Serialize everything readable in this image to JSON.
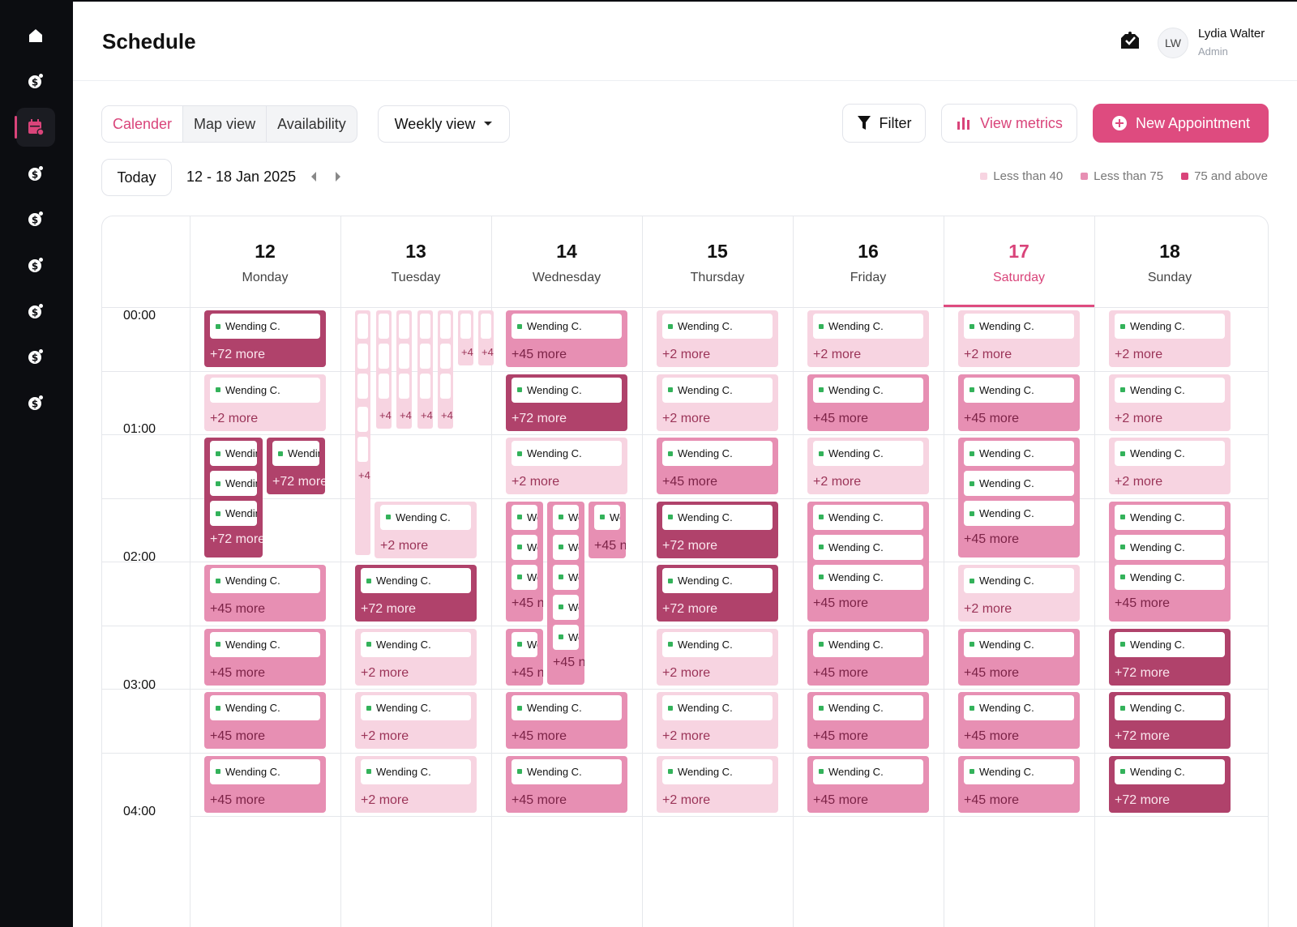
{
  "header": {
    "title": "Schedule",
    "user_initials": "LW",
    "user_name": "Lydia Walter",
    "user_role": "Admin"
  },
  "sidebar": {
    "items": [
      {
        "icon": "home-icon"
      },
      {
        "icon": "dollar-icon"
      },
      {
        "icon": "calendar-icon",
        "active": true
      },
      {
        "icon": "dollar-icon"
      },
      {
        "icon": "dollar-icon"
      },
      {
        "icon": "dollar-icon"
      },
      {
        "icon": "dollar-icon"
      },
      {
        "icon": "dollar-icon"
      },
      {
        "icon": "dollar-icon"
      }
    ]
  },
  "toolbar": {
    "tabs": [
      "Calender",
      "Map view",
      "Availability"
    ],
    "view_select": "Weekly view",
    "filter_label": "Filter",
    "metrics_label": "View metrics",
    "new_label": "New Appointment",
    "today_label": "Today",
    "date_range": "12 - 18 Jan 2025"
  },
  "legend": [
    {
      "label": "Less than 40",
      "color": "#f7d4e1"
    },
    {
      "label": "Less than 75",
      "color": "#e78fb3"
    },
    {
      "label": "75 and above",
      "color": "#d9447a"
    }
  ],
  "days": [
    {
      "num": "12",
      "name": "Monday"
    },
    {
      "num": "13",
      "name": "Tuesday"
    },
    {
      "num": "14",
      "name": "Wednesday"
    },
    {
      "num": "15",
      "name": "Thursday"
    },
    {
      "num": "16",
      "name": "Friday"
    },
    {
      "num": "17",
      "name": "Saturday",
      "today": true
    },
    {
      "num": "18",
      "name": "Sunday"
    }
  ],
  "times": [
    "00:00",
    "01:00",
    "02:00",
    "03:00",
    "04:00"
  ],
  "grid": {
    "appt_name": "Wending C.",
    "appt_short": "Wendin",
    "appt_tiny": "We",
    "more72": "+72 more",
    "more45": "+45 more",
    "more2": "+2 more",
    "more72_cut": "+72 more",
    "more45_cut": "+45 n",
    "plus_tiny": "+4",
    "columns": [
      [
        "t3|72",
        "t1|2",
        "SPLIT",
        "t2|45",
        "t2|45",
        "t2|45",
        "t2|45"
      ],
      [
        "STUB",
        "STUB",
        "STUB",
        "t1|2",
        "t3|72",
        "t1|2",
        "t1|2",
        "t1|2"
      ],
      [
        "t2|45",
        "t3|72",
        "t1|2",
        "SPLIT3",
        "",
        "t2|45",
        "t2|45"
      ],
      [
        "t1|2",
        "t1|2",
        "t2|45",
        "t3|72",
        "t3|72",
        "t1|2",
        "t1|2",
        "t1|2"
      ],
      [
        "t1|2",
        "t2|45",
        "t1|2",
        "t2-3|45",
        "",
        "t2|45",
        "t2|45",
        "t2|45"
      ],
      [
        "t1|2",
        "t2|45",
        "t2-3|45",
        "",
        "t1|2",
        "t2|45",
        "t2|45",
        "t2|45"
      ],
      [
        "t1|2",
        "t1|2",
        "t1|2",
        "t2-3|45",
        "",
        "t3|72",
        "t3|72",
        "t3|72"
      ]
    ]
  }
}
